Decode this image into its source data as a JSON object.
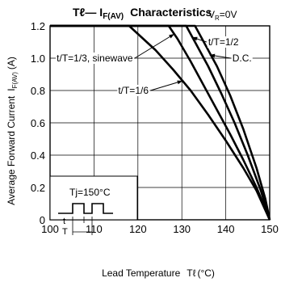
{
  "chart_data": {
    "type": "line",
    "title_main": "Tℓ— I",
    "title_sub": "F(AV)",
    "title_rest": "Characteristics",
    "condition_main": "V",
    "condition_sub": "R",
    "condition_rest": "=0V",
    "xlabel_main": "Lead Temperature",
    "xlabel_sym": "Tℓ",
    "xlabel_unit": "(°C)",
    "ylabel_main": "Average Forward Current",
    "ylabel_sym": "I",
    "ylabel_sub": "F(AV)",
    "ylabel_unit": "(A)",
    "xlim": [
      100,
      150
    ],
    "ylim": [
      0,
      1.2
    ],
    "xticks": [
      100,
      110,
      120,
      130,
      140,
      150
    ],
    "xtick_labels": [
      "100",
      "110",
      "120",
      "130",
      "140",
      "150"
    ],
    "yticks": [
      0,
      0.2,
      0.4,
      0.6,
      0.8,
      1.0,
      1.2
    ],
    "ytick_labels": [
      "0",
      "0.2",
      "0.4",
      "0.6",
      "0.8",
      "1.0",
      "1.2"
    ],
    "grid": true,
    "series": [
      {
        "name": "t/T=1/6",
        "points": [
          [
            100,
            1.2
          ],
          [
            118,
            1.2
          ],
          [
            120,
            1.15
          ],
          [
            124,
            1.05
          ],
          [
            128,
            0.93
          ],
          [
            132,
            0.8
          ],
          [
            136,
            0.65
          ],
          [
            140,
            0.49
          ],
          [
            144,
            0.32
          ],
          [
            147,
            0.18
          ],
          [
            150,
            0.0
          ]
        ]
      },
      {
        "name": "t/T=1/3, sinewave",
        "points": [
          [
            100,
            1.2
          ],
          [
            127,
            1.2
          ],
          [
            129,
            1.12
          ],
          [
            132,
            0.98
          ],
          [
            135,
            0.83
          ],
          [
            138,
            0.68
          ],
          [
            141,
            0.53
          ],
          [
            144,
            0.37
          ],
          [
            147,
            0.2
          ],
          [
            150,
            0.0
          ]
        ]
      },
      {
        "name": "t/T=1/2",
        "points": [
          [
            100,
            1.2
          ],
          [
            131,
            1.2
          ],
          [
            133,
            1.1
          ],
          [
            136,
            0.95
          ],
          [
            139,
            0.78
          ],
          [
            142,
            0.6
          ],
          [
            145,
            0.4
          ],
          [
            148,
            0.18
          ],
          [
            150,
            0.0
          ]
        ]
      },
      {
        "name": "D.C.",
        "points": [
          [
            100,
            1.2
          ],
          [
            133,
            1.2
          ],
          [
            135,
            1.1
          ],
          [
            138,
            0.95
          ],
          [
            141,
            0.77
          ],
          [
            144,
            0.56
          ],
          [
            147,
            0.32
          ],
          [
            149,
            0.13
          ],
          [
            150,
            0.0
          ]
        ]
      }
    ],
    "annotations": [
      {
        "text": "t/T=1/3, sinewave",
        "x": 101.5,
        "y": 1.0,
        "arrow_to": [
          128.3,
          1.15
        ]
      },
      {
        "text": "t/T=1/2",
        "x": 136.0,
        "y": 1.1,
        "arrow_to": [
          132.3,
          1.13
        ]
      },
      {
        "text": "D.C.",
        "x": 141.5,
        "y": 1.0,
        "arrow_to": [
          136.3,
          1.02
        ]
      },
      {
        "text": "t/T=1/6",
        "x": 115.5,
        "y": 0.8,
        "arrow_to": [
          130.2,
          0.86
        ]
      }
    ],
    "inset": {
      "label": "Tj=150°C",
      "t_label": "t",
      "T_label": "T"
    }
  }
}
